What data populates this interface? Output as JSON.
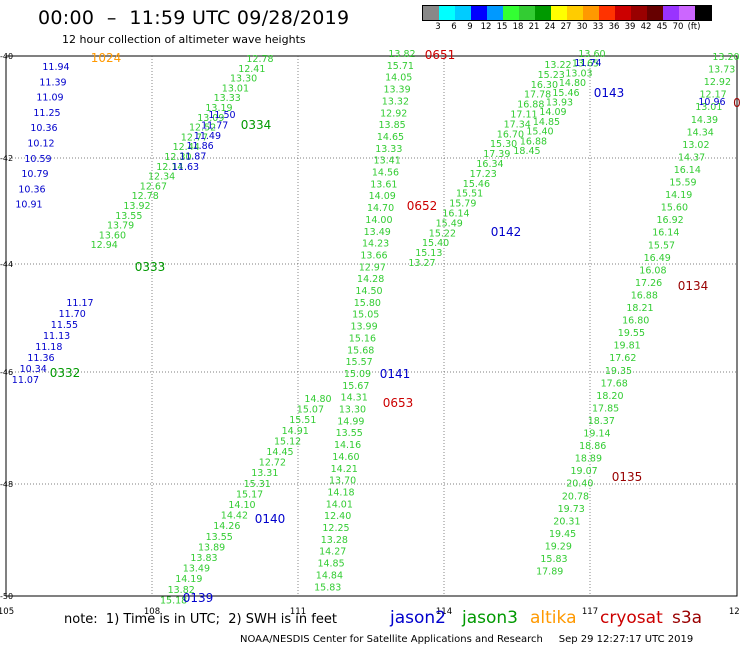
{
  "header": {
    "title": "00:00  –  11:59 UTC 09/28/2019",
    "subtitle": "12 hour collection of altimeter wave heights"
  },
  "legend": {
    "swatch_colors": [
      "#888888",
      "#00ffff",
      "#00ccff",
      "#0000ff",
      "#0099ff",
      "#33ff33",
      "#33cc33",
      "#009900",
      "#ffff00",
      "#ffcc00",
      "#ff9900",
      "#ff3300",
      "#cc0000",
      "#990000",
      "#660000",
      "#9933ff",
      "#cc66ff",
      "#000000"
    ],
    "labels": [
      "3",
      "6",
      "9",
      "12",
      "15",
      "18",
      "21",
      "24",
      "27",
      "30",
      "33",
      "36",
      "39",
      "42",
      "45",
      "70",
      "(ft)"
    ]
  },
  "axes": {
    "lon_labels": [
      "105",
      "108",
      "111",
      "114",
      "117",
      "120"
    ],
    "lat_labels": [
      "-40",
      "-42",
      "-44",
      "-46",
      "-48",
      "-50"
    ]
  },
  "tracks": [
    {
      "id": "jason2-track-a",
      "satellite": "jason2",
      "color": "#0000cc",
      "label_side": "right",
      "values": [
        "11.94",
        "11.39",
        "11.09",
        "11.25",
        "10.36",
        "10.12",
        "10.59",
        "10.79",
        "10.36",
        "10.91"
      ]
    },
    {
      "id": "jason3-track-0334",
      "satellite": "jason3",
      "color": "#33cc33",
      "values": [
        "12.78",
        "12.41",
        "13.30",
        "13.01",
        "13.33",
        "13.19",
        "13.09",
        "12.52",
        "12.77",
        "12.44",
        "12.30",
        "12.14",
        "12.34",
        "12.67",
        "12.78",
        "13.92",
        "13.55",
        "13.79",
        "13.60",
        "12.94"
      ]
    },
    {
      "id": "jason2-track-0334",
      "satellite": "jason2",
      "color": "#0000cc",
      "values": [
        "11.50",
        "11.77",
        "11.49",
        "11.86",
        "11.87",
        "11.63"
      ]
    },
    {
      "id": "jason2-track-0332",
      "satellite": "jason2",
      "color": "#0000cc",
      "values": [
        "11.17",
        "11.70",
        "11.55",
        "11.13",
        "11.18",
        "11.36",
        "10.34",
        "11.07"
      ]
    },
    {
      "id": "jason3-track-0651",
      "satellite": "jason3",
      "color": "#33cc33",
      "values": [
        "13.82",
        "15.71",
        "14.05",
        "13.39",
        "13.32",
        "12.92",
        "13.85",
        "14.65",
        "13.33",
        "13.41",
        "14.56",
        "13.61",
        "14.09",
        "14.70",
        "14.00",
        "13.49",
        "14.23",
        "13.66",
        "12.97",
        "14.28",
        "14.50",
        "15.80",
        "15.05",
        "13.99",
        "15.16",
        "15.68",
        "15.57",
        "15.09",
        "15.67",
        "14.31",
        "13.30",
        "14.99",
        "13.55",
        "14.16",
        "14.60",
        "14.21",
        "13.70",
        "14.18",
        "14.01",
        "12.40",
        "12.25",
        "13.28",
        "14.27",
        "14.85",
        "14.84",
        "15.83"
      ]
    },
    {
      "id": "jason3-track-0652",
      "satellite": "jason3",
      "color": "#33cc33",
      "values": [
        "13.27",
        "15.13",
        "15.40",
        "15.22",
        "15.49",
        "16.14",
        "15.79",
        "15.51",
        "15.46",
        "17.23",
        "16.34",
        "17.39",
        "15.30",
        "16.70",
        "17.34",
        "17.11",
        "16.88",
        "17.78",
        "16.30",
        "15.23",
        "13.22"
      ]
    },
    {
      "id": "jason3-track-0142",
      "satellite": "jason3",
      "color": "#33cc33",
      "values": [
        "13.60",
        "13.65",
        "13.03",
        "14.80",
        "15.46",
        "13.93",
        "14.09",
        "14.85",
        "15.40",
        "16.88",
        "18.45"
      ]
    },
    {
      "id": "jason2-track-0142",
      "satellite": "jason2",
      "color": "#0000cc",
      "values": [
        "11.74"
      ]
    },
    {
      "id": "jason3-track-0140",
      "satellite": "jason3",
      "color": "#33cc33",
      "values": [
        "14.80",
        "15.07",
        "15.51",
        "14.91",
        "15.12",
        "14.45",
        "12.72",
        "13.31",
        "15.31",
        "15.17",
        "14.10",
        "14.42",
        "14.26",
        "13.55",
        "13.89",
        "13.83",
        "13.49",
        "14.19",
        "13.82",
        "15.18"
      ]
    },
    {
      "id": "jason3-track-0134",
      "satellite": "jason3",
      "color": "#33cc33",
      "values": [
        "13.20",
        "13.73",
        "12.92",
        "12.17",
        "13.01",
        "14.39",
        "14.34",
        "13.02",
        "14.37",
        "16.14",
        "15.59",
        "14.19",
        "15.60",
        "16.92",
        "16.14",
        "15.57",
        "16.49",
        "16.08",
        "17.26",
        "16.88",
        "18.21",
        "16.80",
        "19.55",
        "19.81",
        "17.62",
        "19.35",
        "17.68",
        "18.20",
        "17.85",
        "18.37",
        "19.14",
        "18.86",
        "18.89",
        "19.07",
        "20.40",
        "20.78",
        "19.73",
        "20.31",
        "19.45",
        "19.29",
        "15.83",
        "17.89"
      ]
    },
    {
      "id": "jason2-track-0134",
      "satellite": "jason2",
      "color": "#0000cc",
      "values": [
        "10.96"
      ]
    }
  ],
  "time_tags": [
    {
      "text": "1024",
      "color": "#ff9900",
      "satellite": "altika"
    },
    {
      "text": "0651",
      "color": "#cc0000",
      "satellite": "cryosat"
    },
    {
      "text": "0334",
      "color": "#009900",
      "satellite": "jason3"
    },
    {
      "text": "0652",
      "color": "#cc0000",
      "satellite": "cryosat"
    },
    {
      "text": "0143",
      "color": "#0000cc",
      "satellite": "jason2"
    },
    {
      "text": "0142",
      "color": "#0000cc",
      "satellite": "jason2"
    },
    {
      "text": "0333",
      "color": "#009900",
      "satellite": "jason3"
    },
    {
      "text": "0134",
      "color": "#990000",
      "satellite": "s3a"
    },
    {
      "text": "0332",
      "color": "#009900",
      "satellite": "jason3"
    },
    {
      "text": "0141",
      "color": "#0000cc",
      "satellite": "jason2"
    },
    {
      "text": "0653",
      "color": "#cc0000",
      "satellite": "cryosat"
    },
    {
      "text": "0135",
      "color": "#990000",
      "satellite": "s3a"
    },
    {
      "text": "0140",
      "color": "#0000cc",
      "satellite": "jason2"
    },
    {
      "text": "0139",
      "color": "#0000cc",
      "satellite": "jason2"
    },
    {
      "text": "0",
      "color": "#990000",
      "satellite": "s3a"
    }
  ],
  "footer": {
    "note": "note:  1) Time is in UTC;  2) SWH is in feet",
    "satellites": [
      {
        "name": "jason2",
        "color": "#0000cc"
      },
      {
        "name": "jason3",
        "color": "#009900"
      },
      {
        "name": "altika",
        "color": "#ff9900"
      },
      {
        "name": "cryosat",
        "color": "#cc0000"
      },
      {
        "name": "s3a",
        "color": "#990000"
      }
    ],
    "credit": "NOAA/NESDIS Center for Satellite Applications and Research     Sep 29 12:27:17 UTC 2019"
  }
}
